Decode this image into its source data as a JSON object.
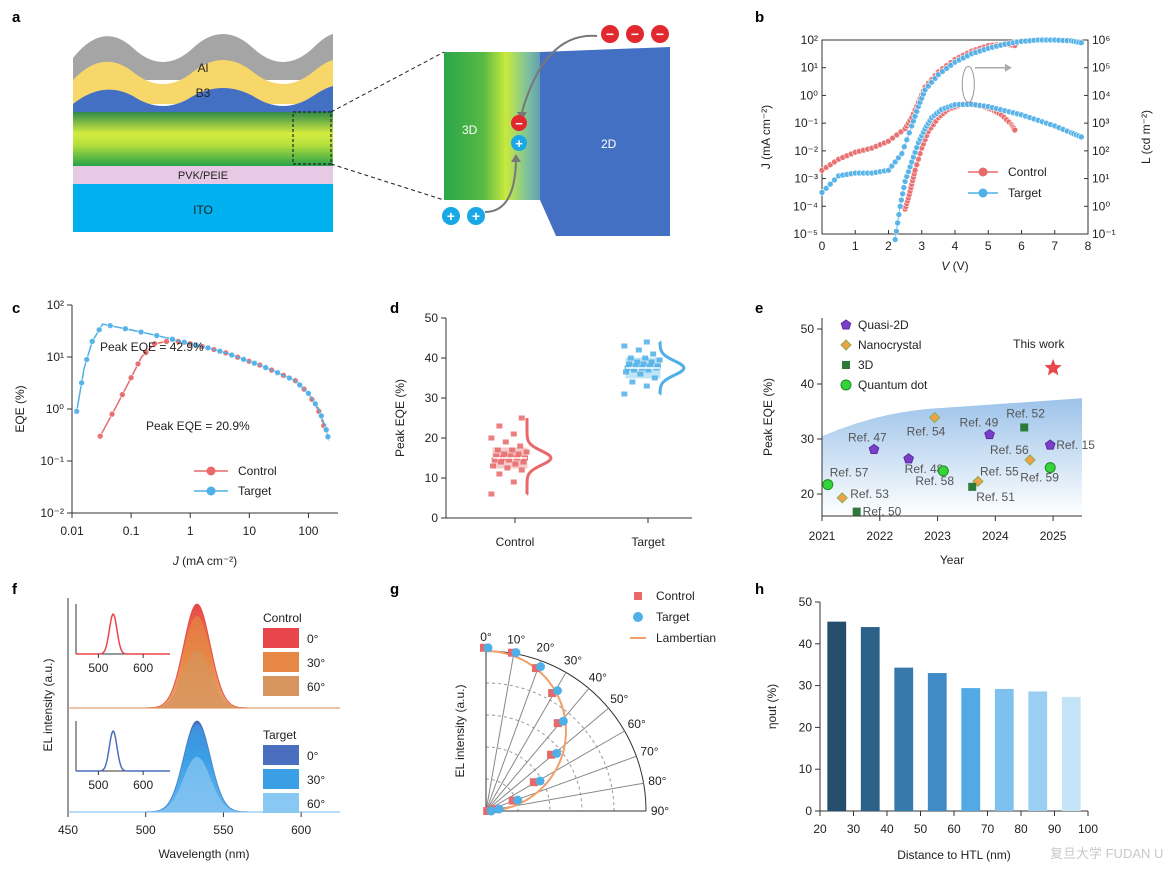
{
  "panels": {
    "a": {
      "letter": "a",
      "layers": [
        "Al",
        "B3",
        "PVK/PEIE",
        "ITO"
      ],
      "zoom_labels": [
        "3D",
        "2D"
      ],
      "charges": {
        "minus": "−",
        "plus": "+"
      }
    },
    "b": {
      "letter": "b"
    },
    "c": {
      "letter": "c"
    },
    "d": {
      "letter": "d"
    },
    "e": {
      "letter": "e"
    },
    "f": {
      "letter": "f"
    },
    "g": {
      "letter": "g"
    },
    "h": {
      "letter": "h"
    }
  },
  "colors": {
    "control": "#e8696a",
    "target": "#4fb0e8",
    "green": "#2aa64a",
    "blue_2d": "#4470c4",
    "ito": "#00b0ef",
    "pvk": "#e7c9e5",
    "al": "#a5a5a5",
    "b3": "#f8d76a"
  },
  "chart_data": [
    {
      "id": "b",
      "type": "line",
      "xlabel_italic": "V",
      "xlabel_unit": " (V)",
      "ylabel_left": "J (mA cm⁻²)",
      "ylabel_right": "L (cd m⁻²)",
      "xlim": [
        0,
        8
      ],
      "xticks": [
        0,
        1,
        2,
        3,
        4,
        5,
        6,
        7,
        8
      ],
      "ylim_left_log": [
        -5,
        2
      ],
      "ylim_right_log": [
        -1,
        6
      ],
      "yticks_left": [
        "10⁻⁵",
        "10⁻⁴",
        "10⁻³",
        "10⁻²",
        "10⁻¹",
        "10⁰",
        "10¹",
        "10²"
      ],
      "yticks_right": [
        "10⁻¹",
        "10⁰",
        "10¹",
        "10²",
        "10³",
        "10⁴",
        "10⁵",
        "10⁶"
      ],
      "legend": [
        "Control",
        "Target"
      ],
      "series": [
        {
          "name": "Control",
          "axis": "J",
          "x": [
            0,
            0.5,
            1,
            1.5,
            2,
            2.5,
            2.7,
            2.9,
            3.1,
            3.5,
            4,
            4.5,
            5,
            5.5,
            5.8
          ],
          "y_log": [
            -2.7,
            -2.3,
            -2.05,
            -1.9,
            -1.65,
            -1.2,
            -0.8,
            -0.25,
            0.3,
            0.85,
            1.3,
            1.6,
            1.8,
            1.85,
            1.8
          ]
        },
        {
          "name": "Target",
          "axis": "J",
          "x": [
            0,
            0.5,
            1,
            1.5,
            2,
            2.4,
            2.7,
            2.9,
            3.1,
            3.5,
            4,
            4.5,
            5,
            5.5,
            6,
            6.5,
            7,
            7.5,
            7.8
          ],
          "y_log": [
            -3.5,
            -2.9,
            -2.8,
            -2.8,
            -2.7,
            -2.1,
            -1.1,
            -0.4,
            0.2,
            0.75,
            1.2,
            1.5,
            1.7,
            1.85,
            1.95,
            2.0,
            2.0,
            1.97,
            1.9
          ]
        },
        {
          "name": "Control",
          "axis": "L",
          "x": [
            2.5,
            2.6,
            2.7,
            2.8,
            3.0,
            3.2,
            3.5,
            3.8,
            4.2,
            4.5,
            4.8,
            5.1,
            5.4,
            5.7,
            5.8
          ],
          "y_log": [
            -0.1,
            0.3,
            0.8,
            1.3,
            2.1,
            2.7,
            3.2,
            3.5,
            3.67,
            3.68,
            3.62,
            3.5,
            3.3,
            2.95,
            2.75
          ]
        },
        {
          "name": "Target",
          "axis": "L",
          "x": [
            2.2,
            2.35,
            2.5,
            2.7,
            2.9,
            3.1,
            3.3,
            3.6,
            4.0,
            4.5,
            5.0,
            5.5,
            6.0,
            6.5,
            7.0,
            7.5,
            7.8
          ],
          "y_log": [
            -1.2,
            0.0,
            0.9,
            1.6,
            2.3,
            2.8,
            3.2,
            3.5,
            3.67,
            3.68,
            3.6,
            3.45,
            3.3,
            3.1,
            2.9,
            2.65,
            2.5
          ]
        }
      ]
    },
    {
      "id": "c",
      "type": "line",
      "xlabel_italic": "J",
      "xlabel_unit": " (mA cm⁻²)",
      "ylabel": "EQE (%)",
      "xlim_log": [
        -2,
        2.5
      ],
      "ylim_log": [
        -2,
        2
      ],
      "xticks": [
        0.01,
        0.1,
        1,
        10,
        100
      ],
      "yticks": [
        "10⁻²",
        "10⁻¹",
        "10⁰",
        "10¹",
        "10²"
      ],
      "annotations": [
        "Peak EQE = 42.9%",
        "Peak EQE = 20.9%"
      ],
      "legend": [
        "Control",
        "Target"
      ],
      "series": [
        {
          "name": "Control",
          "x": [
            0.03,
            0.06,
            0.1,
            0.15,
            0.25,
            0.5,
            1,
            2,
            4,
            8,
            15,
            30,
            60,
            100,
            150,
            200
          ],
          "y": [
            0.3,
            1.3,
            4,
            10,
            18,
            20.9,
            18,
            15,
            12,
            9,
            7,
            5,
            3.5,
            2,
            0.9,
            0.35
          ]
        },
        {
          "name": "Target",
          "x": [
            0.012,
            0.016,
            0.022,
            0.033,
            0.08,
            0.2,
            0.5,
            1,
            2,
            4,
            8,
            15,
            30,
            60,
            100,
            150,
            200,
            220
          ],
          "y": [
            0.9,
            6,
            20,
            42.9,
            35,
            28,
            22,
            18,
            15,
            12,
            9,
            7,
            5,
            3.5,
            2,
            1,
            0.4,
            0.25
          ]
        }
      ]
    },
    {
      "id": "d",
      "type": "scatter",
      "ylabel": "Peak EQE (%)",
      "ylim": [
        0,
        50
      ],
      "yticks": [
        0,
        10,
        20,
        30,
        40,
        50
      ],
      "categories": [
        "Control",
        "Target"
      ],
      "series": [
        {
          "name": "Control",
          "values": [
            6,
            9,
            11,
            12,
            12.5,
            13,
            13.5,
            14,
            14,
            14.5,
            14.5,
            15,
            15,
            15,
            15.5,
            15.5,
            16,
            16,
            16.5,
            17,
            17,
            18,
            19,
            20,
            21,
            23,
            25
          ],
          "center": 15
        },
        {
          "name": "Target",
          "values": [
            31,
            33,
            34,
            35,
            36,
            36.5,
            37,
            37,
            37.5,
            37.5,
            37.5,
            38,
            38,
            38,
            38.5,
            38.5,
            39,
            39,
            39.5,
            40,
            40,
            41,
            42,
            43,
            44
          ],
          "center": 37.5
        }
      ]
    },
    {
      "id": "e",
      "type": "scatter",
      "xlabel": "Year",
      "ylabel": "Peak EQE (%)",
      "xlim": [
        2021,
        2025.5
      ],
      "ylim": [
        16,
        52
      ],
      "xticks": [
        2021,
        2022,
        2023,
        2024,
        2025
      ],
      "yticks": [
        20,
        30,
        40,
        50
      ],
      "legend": [
        "Quasi-2D",
        "Nanocrystal",
        "3D",
        "Quantum dot"
      ],
      "this_work": {
        "label": "This work",
        "x": 2025,
        "y": 42.9
      },
      "points": [
        {
          "ref": "Ref. 47",
          "kind": "Quasi-2D",
          "x": 2021.9,
          "y": 28.1
        },
        {
          "ref": "Ref. 48",
          "kind": "Quasi-2D",
          "x": 2022.5,
          "y": 26.4
        },
        {
          "ref": "Ref. 49",
          "kind": "Quasi-2D",
          "x": 2023.9,
          "y": 30.8
        },
        {
          "ref": "Ref. 15",
          "kind": "Quasi-2D",
          "x": 2024.95,
          "y": 28.9
        },
        {
          "ref": "Ref. 54",
          "kind": "Nanocrystal",
          "x": 2022.95,
          "y": 33.9
        },
        {
          "ref": "Ref. 53",
          "kind": "Nanocrystal",
          "x": 2021.35,
          "y": 19.3
        },
        {
          "ref": "Ref. 55",
          "kind": "Nanocrystal",
          "x": 2023.7,
          "y": 22.3
        },
        {
          "ref": "Ref. 56",
          "kind": "Nanocrystal",
          "x": 2024.6,
          "y": 26.2
        },
        {
          "ref": "Ref. 50",
          "kind": "3D",
          "x": 2021.6,
          "y": 16.8
        },
        {
          "ref": "Ref. 51",
          "kind": "3D",
          "x": 2023.6,
          "y": 21.3
        },
        {
          "ref": "Ref. 52",
          "kind": "3D",
          "x": 2024.5,
          "y": 32.1
        },
        {
          "ref": "Ref. 57",
          "kind": "Quantum dot",
          "x": 2021.1,
          "y": 21.7
        },
        {
          "ref": "Ref. 58",
          "kind": "Quantum dot",
          "x": 2023.1,
          "y": 24.2
        },
        {
          "ref": "Ref. 59",
          "kind": "Quantum dot",
          "x": 2024.95,
          "y": 24.8
        }
      ]
    },
    {
      "id": "f",
      "type": "area",
      "xlabel": "Wavelength (nm)",
      "ylabel": "EL intensity (a.u.)",
      "xlim": [
        450,
        625
      ],
      "xticks": [
        450,
        500,
        550,
        600
      ],
      "inset_xticks": [
        500,
        600
      ],
      "peak_nm": 533,
      "groups": [
        {
          "name": "Control",
          "angles": [
            "0°",
            "30°",
            "60°"
          ],
          "heights": [
            1.0,
            0.88,
            0.55
          ],
          "colors": [
            "#e8464a",
            "#e68745",
            "#d6955c"
          ]
        },
        {
          "name": "Target",
          "angles": [
            "0°",
            "30°",
            "60°"
          ],
          "heights": [
            1.0,
            0.96,
            0.6
          ],
          "colors": [
            "#4a6fbf",
            "#3b9fe6",
            "#8ac8f4"
          ]
        }
      ]
    },
    {
      "id": "g",
      "type": "scatter",
      "ylabel": "EL intensity (a.u.)",
      "angles_labels": [
        "0°",
        "10°",
        "20°",
        "30°",
        "40°",
        "50°",
        "60°",
        "70°",
        "80°",
        "90°"
      ],
      "legend": [
        "Control",
        "Target",
        "Lambertian"
      ],
      "series": [
        {
          "name": "Control",
          "angles": [
            0,
            10,
            20,
            30,
            40,
            50,
            60,
            70,
            80,
            90
          ],
          "values": [
            1.0,
            1.0,
            0.99,
            0.96,
            0.91,
            0.82,
            0.68,
            0.5,
            0.27,
            0.03
          ]
        },
        {
          "name": "Target",
          "angles": [
            0,
            10,
            20,
            30,
            40,
            50,
            60,
            70,
            80,
            90
          ],
          "values": [
            1.0,
            1.0,
            1.0,
            0.98,
            0.93,
            0.84,
            0.71,
            0.52,
            0.29,
            0.03
          ]
        }
      ]
    },
    {
      "id": "h",
      "type": "bar",
      "xlabel": "Distance to HTL (nm)",
      "ylabel": "ηout (%)",
      "xlim": [
        20,
        100
      ],
      "ylim": [
        0,
        50
      ],
      "xticks": [
        20,
        30,
        40,
        50,
        60,
        70,
        80,
        90,
        100
      ],
      "yticks": [
        0,
        10,
        20,
        30,
        40,
        50
      ],
      "categories": [
        25,
        35,
        45,
        55,
        65,
        75,
        85,
        95
      ],
      "values": [
        45.3,
        44.0,
        34.3,
        33.0,
        29.4,
        29.2,
        28.6,
        27.3
      ],
      "bar_colors": [
        "#244e6b",
        "#2c6289",
        "#3879ab",
        "#3f8bc7",
        "#53a9e5",
        "#7ec1ef",
        "#9bcff2",
        "#c6e4f7"
      ]
    }
  ],
  "watermark": "复旦大学 FUDAN UNIVERSITY"
}
